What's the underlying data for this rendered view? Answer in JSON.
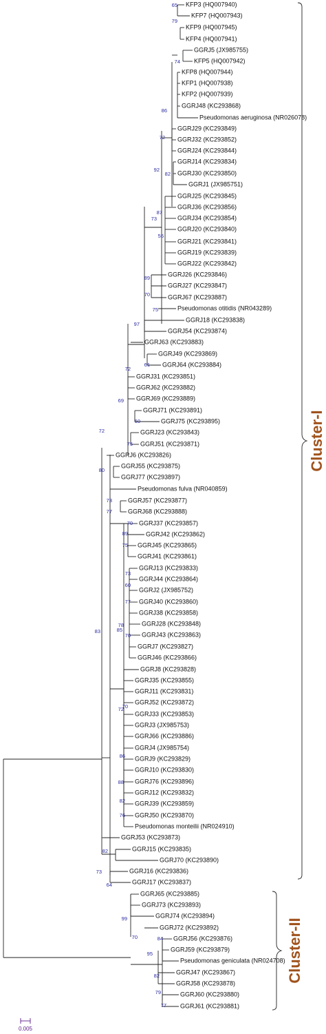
{
  "leaves": [
    "KFP3 (HQ007940)",
    "KFP7 (HQ007943)",
    "KFP9 (HQ007945)",
    "KFP4 (HQ007941)",
    "GGRJ5 (JX985755)",
    "KFP5 (HQ007942)",
    "KFP8 (HQ007944)",
    "KFP1 (HQ007938)",
    "KFP2 (HQ007939)",
    "GGRJ48 (KC293868)",
    "Pseudomonas aeruginosa (NR026078)",
    "GGRJ29 (KC293849)",
    "GGRJ32 (KC293852)",
    "GGRJ24 (KC293844)",
    "GGRJ14 (KC293834)",
    "GGRJ30 (KC293850)",
    "GGRJ1 (JX985751)",
    "GGRJ25 (KC293845)",
    "GGRJ36 (KC293856)",
    "GGRJ34 (KC293854)",
    "GGRJ20 (KC293840)",
    "GGRJ21 (KC293841)",
    "GGRJ19 (KC293839)",
    "GGRJ22 (KC293842)",
    "GGRJ26 (KC293846)",
    "GGRJ27 (KC293847)",
    "GGRJ67 (KC293887)",
    "Pseudomonas otitidis (NR043289)",
    "GGRJ18 (KC293838)",
    "GGRJ54 (KC293874)",
    "GGRJ63 (KC293883)",
    "GGRJ49 (KC293869)",
    "GGRJ64 (KC293884)",
    "GGRJ31 (KC293851)",
    "GGRJ62 (KC293882)",
    "GGRJ69 (KC293889)",
    "GGRJ71 (KC293891)",
    "GGRJ75 (KC293895)",
    "GGRJ23 (KC293843)",
    "GGRJ51 (KC293871)",
    "GGRJ6 (KC293826)",
    "GGRJ55 (KC293875)",
    "GGRJ77 (KC293897)",
    "Pseudomonas fulva (NR040859)",
    "GGRJ57 (KC293877)",
    "GGRJ68 (KC293888)",
    "GGRJ37 (KC293857)",
    "GGRJ42 (KC293862)",
    "GGRJ45 (KC293865)",
    "GGRJ41 (KC293861)",
    "GGRJ13 (KC293833)",
    "GGRJ44 (KC293864)",
    "GGRJ2 (JX985752)",
    "GGRJ40 (KC293860)",
    "GGRJ38 (KC293858)",
    "GGRJ28 (KC293848)",
    "GGRJ43 (KC293863)",
    "GGRJ7 (KC293827)",
    "GGRJ46 (KC293866)",
    "GGRJ8 (KC293828)",
    "GGRJ35 (KC293855)",
    "GGRJ11 (KC293831)",
    "GGRJ52 (KC293872)",
    "GGRJ33 (KC293853)",
    "GGRJ3 (JX985753)",
    "GGRJ66 (KC293886)",
    "GGRJ4 (JX985754)",
    "GGRJ9 (KC293829)",
    "GGRJ10 (KC293830)",
    "GGRJ76 (KC293896)",
    "GGRJ12 (KC293832)",
    "GGRJ39 (KC293859)",
    "GGRJ50 (KC293870)",
    "Pseudomonas monteilii (NR024910)",
    "GGRJ53 (KC293873)",
    "GGRJ15 (KC293835)",
    "GGRJ70 (KC293890)",
    "GGRJ16 (KC293836)",
    "GGRJ17 (KC293837)",
    "GGRJ65 (KC293885)",
    "GGRJ73 (KC293893)",
    "GGRJ74 (KC293894)",
    "GGRJ72 (KC293892)",
    "GGRJ56 (KC293876)",
    "GGRJ59 (KC293879)",
    "Pseudomonas geniculata (NR024708)",
    "GGRJ47 (KC293867)",
    "GGRJ58 (KC293878)",
    "GGRJ60 (KC293880)",
    "GGRJ61 (KC293881)"
  ],
  "bootstrap": [
    65,
    79,
    74,
    86,
    72,
    92,
    82,
    87,
    73,
    56,
    89,
    70,
    75,
    97,
    72,
    61,
    69,
    60,
    75,
    72,
    80,
    73,
    77,
    70,
    89,
    75,
    73,
    60,
    77,
    78,
    85,
    70,
    83,
    70,
    72,
    86,
    88,
    82,
    76,
    82,
    73,
    64,
    99,
    70,
    84,
    95,
    82,
    79,
    77
  ],
  "clusters": [
    "Cluster-I",
    "Cluster-II"
  ],
  "scale": "0.005"
}
